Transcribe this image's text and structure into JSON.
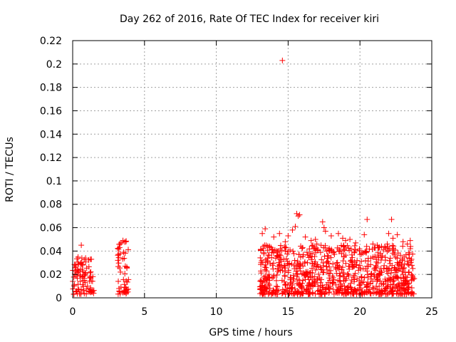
{
  "chart_data": {
    "type": "scatter",
    "title": "Day 262 of 2016, Rate Of TEC Index for receiver kiri",
    "xlabel": "GPS time / hours",
    "ylabel": "ROTI / TECUs",
    "xlim": [
      0,
      25
    ],
    "ylim": [
      0,
      0.22
    ],
    "grid": true,
    "marker": "+",
    "color": "#ff0000",
    "x_ticks": [
      "0",
      "5",
      "10",
      "15",
      "20",
      "25"
    ],
    "y_ticks": [
      "0",
      "0.02",
      "0.04",
      "0.06",
      "0.08",
      "0.1",
      "0.12",
      "0.14",
      "0.16",
      "0.18",
      "0.2",
      "0.22"
    ],
    "clusters": [
      {
        "x_range": [
          0.0,
          1.5
        ],
        "y_range": [
          0.003,
          0.035
        ],
        "count": 90
      },
      {
        "x_range": [
          3.1,
          3.9
        ],
        "y_range": [
          0.003,
          0.05
        ],
        "count": 55
      },
      {
        "x_range": [
          13.0,
          23.8
        ],
        "y_range": [
          0.003,
          0.045
        ],
        "count": 900
      }
    ],
    "series": [
      {
        "name": "ROTI",
        "points": [
          [
            0.6,
            0.045
          ],
          [
            1.3,
            0.033
          ],
          [
            0.2,
            0.026
          ],
          [
            0.9,
            0.034
          ],
          [
            3.5,
            0.049
          ],
          [
            3.7,
            0.048
          ],
          [
            3.3,
            0.046
          ],
          [
            13.2,
            0.055
          ],
          [
            13.4,
            0.059
          ],
          [
            14.6,
            0.203
          ],
          [
            14.0,
            0.052
          ],
          [
            14.4,
            0.055
          ],
          [
            14.8,
            0.048
          ],
          [
            15.0,
            0.053
          ],
          [
            15.3,
            0.058
          ],
          [
            15.6,
            0.072
          ],
          [
            15.7,
            0.07
          ],
          [
            15.8,
            0.071
          ],
          [
            15.5,
            0.061
          ],
          [
            16.2,
            0.052
          ],
          [
            16.6,
            0.049
          ],
          [
            17.0,
            0.046
          ],
          [
            17.4,
            0.065
          ],
          [
            17.5,
            0.06
          ],
          [
            17.6,
            0.057
          ],
          [
            18.0,
            0.053
          ],
          [
            18.5,
            0.055
          ],
          [
            18.8,
            0.051
          ],
          [
            19.3,
            0.05
          ],
          [
            19.7,
            0.047
          ],
          [
            20.3,
            0.054
          ],
          [
            20.5,
            0.067
          ],
          [
            20.9,
            0.046
          ],
          [
            21.5,
            0.044
          ],
          [
            21.9,
            0.046
          ],
          [
            22.2,
            0.067
          ],
          [
            22.0,
            0.055
          ],
          [
            22.3,
            0.051
          ],
          [
            22.6,
            0.054
          ],
          [
            23.0,
            0.048
          ],
          [
            23.3,
            0.046
          ],
          [
            23.5,
            0.049
          ],
          [
            13.7,
            0.044
          ],
          [
            16.9,
            0.05
          ],
          [
            19.0,
            0.049
          ],
          [
            21.2,
            0.045
          ]
        ]
      }
    ]
  }
}
